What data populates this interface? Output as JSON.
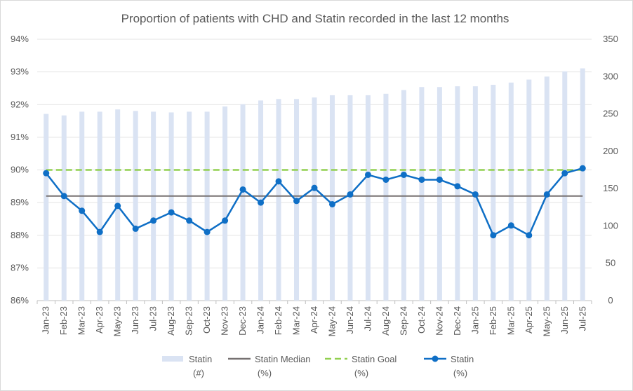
{
  "chart_data": {
    "type": "bar+line",
    "title": "Proportion of patients with CHD and Statin recorded in the last 12 months",
    "categories": [
      "Jan-23",
      "Feb-23",
      "Mar-23",
      "Apr-23",
      "May-23",
      "Jun-23",
      "Jul-23",
      "Aug-23",
      "Sep-23",
      "Oct-23",
      "Nov-23",
      "Dec-23",
      "Jan-24",
      "Feb-24",
      "Mar-24",
      "Apr-24",
      "May-24",
      "Jun-24",
      "Jul-24",
      "Aug-24",
      "Sep-24",
      "Oct-24",
      "Nov-24",
      "Dec-24",
      "Jan-25",
      "Feb-25",
      "Mar-25",
      "Apr-25",
      "May-25",
      "Jun-25",
      "Jul-25"
    ],
    "left_axis": {
      "min": 86,
      "max": 94,
      "step": 1,
      "suffix": "%"
    },
    "right_axis": {
      "min": 0,
      "max": 350,
      "step": 50
    },
    "grid": true,
    "legend_position": "bottom",
    "series": [
      {
        "name": "Statin",
        "unit": "(#)",
        "type": "bar",
        "axis": "right",
        "color": "#dae3f3",
        "values": [
          250,
          248,
          253,
          253,
          256,
          254,
          253,
          252,
          253,
          253,
          260,
          263,
          268,
          270,
          270,
          272,
          275,
          275,
          275,
          277,
          282,
          286,
          286,
          287,
          287,
          289,
          292,
          296,
          300,
          307,
          311
        ]
      },
      {
        "name": "Statin Median",
        "unit": "(%)",
        "type": "line",
        "axis": "left",
        "color": "#767171",
        "values": [
          89.2,
          89.2,
          89.2,
          89.2,
          89.2,
          89.2,
          89.2,
          89.2,
          89.2,
          89.2,
          89.2,
          89.2,
          89.2,
          89.2,
          89.2,
          89.2,
          89.2,
          89.2,
          89.2,
          89.2,
          89.2,
          89.2,
          89.2,
          89.2,
          89.2,
          89.2,
          89.2,
          89.2,
          89.2,
          89.2,
          89.2
        ]
      },
      {
        "name": "Statin Goal",
        "unit": "(%)",
        "type": "dashed-line",
        "axis": "left",
        "color": "#92d050",
        "values": [
          90,
          90,
          90,
          90,
          90,
          90,
          90,
          90,
          90,
          90,
          90,
          90,
          90,
          90,
          90,
          90,
          90,
          90,
          90,
          90,
          90,
          90,
          90,
          90,
          90,
          90,
          90,
          90,
          90,
          90,
          90
        ]
      },
      {
        "name": "Statin",
        "unit": "(%)",
        "type": "line-marker",
        "axis": "left",
        "color": "#0f6fc6",
        "values": [
          89.9,
          89.2,
          88.75,
          88.1,
          88.9,
          88.2,
          88.45,
          88.7,
          88.45,
          88.1,
          88.45,
          89.4,
          89.0,
          89.65,
          89.05,
          89.45,
          88.95,
          89.25,
          89.85,
          89.7,
          89.85,
          89.7,
          89.7,
          89.5,
          89.25,
          88.0,
          88.3,
          88.0,
          89.25,
          89.9,
          90.05
        ]
      }
    ]
  }
}
